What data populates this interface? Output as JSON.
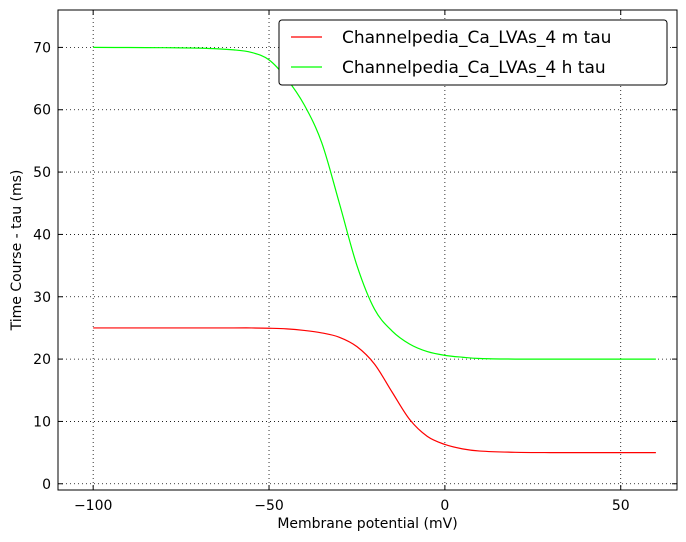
{
  "chart_data": {
    "type": "line",
    "xlabel": "Membrane potential (mV)",
    "ylabel": "Time Course - tau (ms)",
    "xlim": [
      -110,
      66
    ],
    "ylim": [
      -1,
      76
    ],
    "xticks": [
      -100,
      -50,
      0,
      50
    ],
    "xtick_labels": [
      "−100",
      "−50",
      "0",
      "50"
    ],
    "yticks": [
      0,
      10,
      20,
      30,
      40,
      50,
      60,
      70
    ],
    "ytick_labels": [
      "0",
      "10",
      "20",
      "30",
      "40",
      "50",
      "60",
      "70"
    ],
    "grid": true,
    "legend_position": "top-right",
    "x": [
      -100,
      -90,
      -80,
      -70,
      -60,
      -55,
      -50,
      -45,
      -40,
      -35,
      -30,
      -25,
      -20,
      -15,
      -10,
      -5,
      0,
      5,
      10,
      20,
      30,
      40,
      50,
      60
    ],
    "series": [
      {
        "name": "Channelpedia_Ca_LVAs_4 m tau",
        "color": "#ff0000",
        "values": [
          25.0,
          25.0,
          25.0,
          25.0,
          25.0,
          25.0,
          24.95,
          24.85,
          24.6,
          24.2,
          23.5,
          22.0,
          19.2,
          14.7,
          10.3,
          7.6,
          6.3,
          5.6,
          5.25,
          5.05,
          5.0,
          5.0,
          5.0,
          5.0
        ]
      },
      {
        "name": "Channelpedia_Ca_LVAs_4 h tau",
        "color": "#00ff00",
        "values": [
          70.0,
          69.98,
          69.95,
          69.88,
          69.6,
          69.2,
          68.0,
          65.0,
          60.8,
          54.7,
          45.0,
          35.0,
          28.0,
          24.5,
          22.4,
          21.2,
          20.6,
          20.3,
          20.1,
          20.0,
          20.0,
          20.0,
          20.0,
          20.0
        ]
      }
    ]
  }
}
